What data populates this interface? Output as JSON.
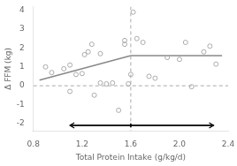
{
  "chart_data": {
    "type": "scatter",
    "xlabel": "Total Protein Intake (g/kg/d)",
    "ylabel": "Δ FFM (kg)",
    "xlim": [
      0.8,
      2.4
    ],
    "ylim": [
      -2.4,
      4.2
    ],
    "xticks": [
      0.8,
      1.2,
      1.6,
      {
        "value": 2.0,
        "label": "2.0"
      },
      2.4
    ],
    "yticks": [
      -2,
      -1,
      0,
      1,
      2,
      3,
      4
    ],
    "grid": false,
    "series": [
      {
        "type": "scatter",
        "marker": "circle",
        "color": "#aaaaaa",
        "x": [
          0.9,
          0.95,
          1.05,
          1.1,
          1.1,
          1.15,
          1.2,
          1.22,
          1.25,
          1.28,
          1.3,
          1.35,
          1.35,
          1.4,
          1.45,
          1.5,
          1.55,
          1.55,
          1.58,
          1.6,
          1.62,
          1.65,
          1.7,
          1.75,
          1.8,
          1.9,
          2.0,
          2.05,
          2.1,
          2.2,
          2.25,
          2.3
        ],
        "values": [
          1.0,
          0.7,
          0.9,
          1.1,
          -0.3,
          0.6,
          0.65,
          1.65,
          1.8,
          2.2,
          -0.5,
          1.7,
          0.15,
          0.1,
          0.15,
          -1.3,
          2.4,
          2.2,
          0.1,
          0.6,
          3.9,
          2.5,
          2.3,
          0.5,
          0.4,
          1.5,
          1.4,
          2.3,
          -0.05,
          1.8,
          2.1,
          1.15
        ]
      },
      {
        "type": "line",
        "color": "#888888",
        "x": [
          0.85,
          1.6
        ],
        "values": [
          0.3,
          1.6
        ]
      },
      {
        "type": "line",
        "color": "#888888",
        "x": [
          1.6,
          2.35
        ],
        "values": [
          1.6,
          1.6
        ]
      },
      {
        "type": "line",
        "color": "#000000",
        "x": [
          1.6,
          1.6
        ],
        "values": [
          -2.2,
          -2.0
        ]
      },
      {
        "type": "line",
        "color": "#000000",
        "x": [
          1.1,
          2.28
        ],
        "values": [
          -2.1,
          -2.1
        ]
      }
    ],
    "hlines": [
      {
        "y": 0.0,
        "color": "#aaaaaa",
        "line_style": "dashed"
      }
    ],
    "vlines": [
      {
        "x": 1.6,
        "color": "#aaaaaa",
        "line_style": "dashed"
      }
    ],
    "arrows": [
      {
        "x_from": 1.6,
        "x_to": 1.1,
        "y": -2.1,
        "color": "#000000"
      },
      {
        "x_from": 1.6,
        "x_to": 2.28,
        "y": -2.1,
        "color": "#000000"
      }
    ]
  }
}
